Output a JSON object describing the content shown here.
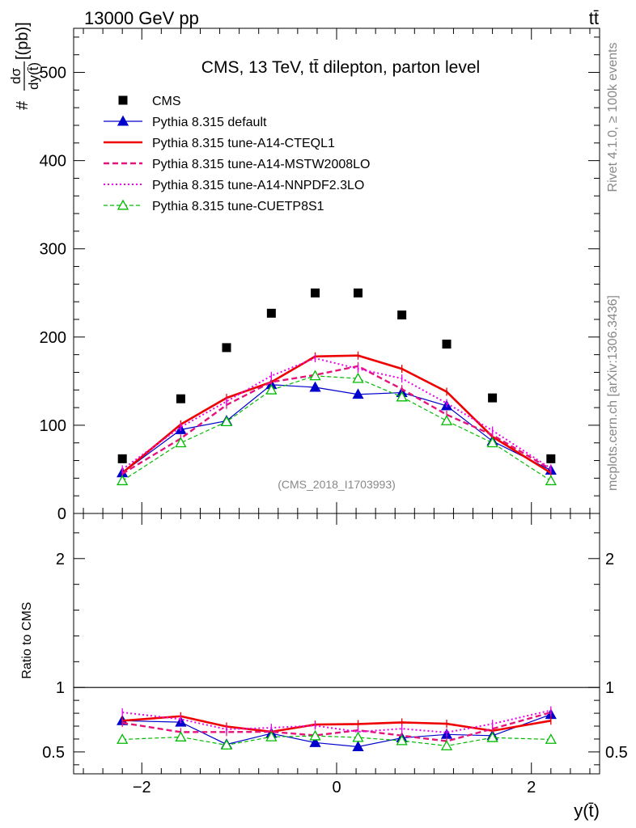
{
  "chart_data": {
    "type": "line",
    "header": {
      "energy": "13000 GeV pp",
      "process": "tt̄"
    },
    "title": "CMS, 13 TeV, tt̄ dilepton, parton level",
    "analysis_tag": "(CMS_2018_I1703993)",
    "side_labels": {
      "rivet": "Rivet 4.1.0, ≥ 100k events",
      "site": "mcplots.cern.ch [arXiv:1306.3436]"
    },
    "ylabel_parts": {
      "prefix": "#",
      "num": "dσ",
      "den": "dy(t̄)",
      "unit": "[(pb)]"
    },
    "ratio_ylabel": "Ratio to CMS",
    "xlabel": "y(t̄)",
    "xlim": [
      -2.7,
      2.7
    ],
    "ylim": [
      0,
      550
    ],
    "ratio_ylim": [
      0.33,
      2.35
    ],
    "x_ticks": [
      {
        "value": -2,
        "label": "−2"
      },
      {
        "value": 0,
        "label": "0"
      },
      {
        "value": 2,
        "label": "2"
      }
    ],
    "y_ticks": [
      {
        "value": 0,
        "label": "0"
      },
      {
        "value": 100,
        "label": "100"
      },
      {
        "value": 200,
        "label": "200"
      },
      {
        "value": 300,
        "label": "300"
      },
      {
        "value": 400,
        "label": "400"
      },
      {
        "value": 500,
        "label": "500"
      }
    ],
    "ratio_ticks": [
      {
        "value": 0.5,
        "label": "0.5"
      },
      {
        "value": 1,
        "label": "1"
      },
      {
        "value": 2,
        "label": "2"
      }
    ],
    "x": [
      -2.2,
      -1.6,
      -1.13,
      -0.67,
      -0.22,
      0.22,
      0.67,
      1.13,
      1.6,
      2.2
    ],
    "cms": [
      62,
      130,
      188,
      227,
      250,
      250,
      225,
      192,
      131,
      62
    ],
    "series": [
      {
        "name": "Pythia 8.315 default",
        "color": "#0000cc",
        "width": 1.2,
        "dash": "",
        "marker": "triangle-filled",
        "values": [
          46,
          95,
          105,
          146,
          143,
          135,
          137,
          122,
          82,
          49
        ]
      },
      {
        "name": "Pythia 8.315 tune-A14-CTEQL1",
        "color": "#ee0000",
        "width": 2.6,
        "dash": "",
        "marker": "",
        "values": [
          46,
          101,
          131,
          149,
          178,
          179,
          164,
          138,
          87,
          46
        ]
      },
      {
        "name": "Pythia 8.315 tune-A14-MSTW2008LO",
        "color": "#e5147a",
        "width": 2.4,
        "dash": "7,4",
        "marker": "",
        "values": [
          45,
          85,
          123,
          149,
          157,
          167,
          141,
          112,
          89,
          50
        ]
      },
      {
        "name": "Pythia 8.315 tune-A14-NNPDF2.3LO",
        "color": "#ee00ee",
        "width": 2,
        "dash": "2,3",
        "marker": "",
        "values": [
          50,
          98,
          127,
          156,
          176,
          164,
          153,
          125,
          94,
          51
        ]
      },
      {
        "name": "Pythia 8.315 tune-CUETP8S1",
        "color": "#00bb00",
        "width": 1.2,
        "dash": "5,3",
        "marker": "triangle-open",
        "values": [
          37,
          80,
          104,
          140,
          156,
          153,
          132,
          105,
          80,
          37
        ]
      }
    ],
    "legend_data_label": "CMS"
  }
}
